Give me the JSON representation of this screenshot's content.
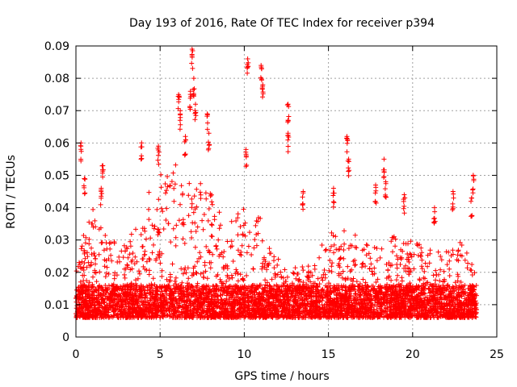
{
  "chart_data": {
    "type": "scatter",
    "title": "Day 193 of 2016, Rate Of TEC Index for receiver p394",
    "xlabel": "GPS time / hours",
    "ylabel": "ROTI / TECUs",
    "xlim": [
      0,
      25
    ],
    "ylim": [
      0,
      0.09
    ],
    "xticks": [
      0,
      5,
      10,
      15,
      20,
      25
    ],
    "yticks": [
      0,
      0.01,
      0.02,
      0.03,
      0.04,
      0.05,
      0.06,
      0.07,
      0.08,
      0.09
    ],
    "xtick_labels": [
      "0",
      "5",
      "10",
      "15",
      "20",
      "25"
    ],
    "ytick_labels": [
      "0",
      "0.01",
      "0.02",
      "0.03",
      "0.04",
      "0.05",
      "0.06",
      "0.07",
      "0.08",
      "0.09"
    ],
    "grid": true,
    "marker": "+",
    "color": "#ff0000",
    "series": [
      {
        "name": "p394",
        "x_range": [
          0,
          23.8
        ],
        "baseline_band": [
          0.006,
          0.016
        ],
        "notable_points": [
          {
            "x": 0.3,
            "y": 0.06
          },
          {
            "x": 0.5,
            "y": 0.049
          },
          {
            "x": 1.6,
            "y": 0.053
          },
          {
            "x": 1.5,
            "y": 0.046
          },
          {
            "x": 3.9,
            "y": 0.06
          },
          {
            "x": 4.9,
            "y": 0.059
          },
          {
            "x": 6.1,
            "y": 0.075
          },
          {
            "x": 6.2,
            "y": 0.07
          },
          {
            "x": 6.5,
            "y": 0.062
          },
          {
            "x": 6.8,
            "y": 0.076
          },
          {
            "x": 6.9,
            "y": 0.089
          },
          {
            "x": 7.0,
            "y": 0.08
          },
          {
            "x": 7.1,
            "y": 0.072
          },
          {
            "x": 7.8,
            "y": 0.069
          },
          {
            "x": 7.9,
            "y": 0.063
          },
          {
            "x": 10.1,
            "y": 0.058
          },
          {
            "x": 10.2,
            "y": 0.086
          },
          {
            "x": 11.0,
            "y": 0.084
          },
          {
            "x": 11.1,
            "y": 0.078
          },
          {
            "x": 12.6,
            "y": 0.072
          },
          {
            "x": 12.6,
            "y": 0.063
          },
          {
            "x": 13.5,
            "y": 0.045
          },
          {
            "x": 15.3,
            "y": 0.046
          },
          {
            "x": 16.1,
            "y": 0.062
          },
          {
            "x": 16.2,
            "y": 0.055
          },
          {
            "x": 18.3,
            "y": 0.055
          },
          {
            "x": 17.8,
            "y": 0.047
          },
          {
            "x": 18.4,
            "y": 0.048
          },
          {
            "x": 19.5,
            "y": 0.044
          },
          {
            "x": 21.3,
            "y": 0.04
          },
          {
            "x": 22.4,
            "y": 0.045
          },
          {
            "x": 23.6,
            "y": 0.05
          },
          {
            "x": 23.5,
            "y": 0.043
          }
        ]
      }
    ],
    "activity_profile": [
      {
        "x": 0,
        "peak": 0.025
      },
      {
        "x": 1,
        "peak": 0.04
      },
      {
        "x": 2,
        "peak": 0.03
      },
      {
        "x": 3,
        "peak": 0.028
      },
      {
        "x": 4,
        "peak": 0.045
      },
      {
        "x": 5,
        "peak": 0.05
      },
      {
        "x": 6,
        "peak": 0.055
      },
      {
        "x": 7,
        "peak": 0.05
      },
      {
        "x": 8,
        "peak": 0.045
      },
      {
        "x": 9,
        "peak": 0.035
      },
      {
        "x": 10,
        "peak": 0.04
      },
      {
        "x": 11,
        "peak": 0.038
      },
      {
        "x": 12,
        "peak": 0.025
      },
      {
        "x": 13,
        "peak": 0.022
      },
      {
        "x": 14,
        "peak": 0.025
      },
      {
        "x": 15,
        "peak": 0.033
      },
      {
        "x": 16,
        "peak": 0.035
      },
      {
        "x": 17,
        "peak": 0.03
      },
      {
        "x": 18,
        "peak": 0.028
      },
      {
        "x": 19,
        "peak": 0.032
      },
      {
        "x": 20,
        "peak": 0.03
      },
      {
        "x": 21,
        "peak": 0.028
      },
      {
        "x": 22,
        "peak": 0.027
      },
      {
        "x": 23,
        "peak": 0.03
      },
      {
        "x": 23.8,
        "peak": 0.02
      }
    ]
  }
}
